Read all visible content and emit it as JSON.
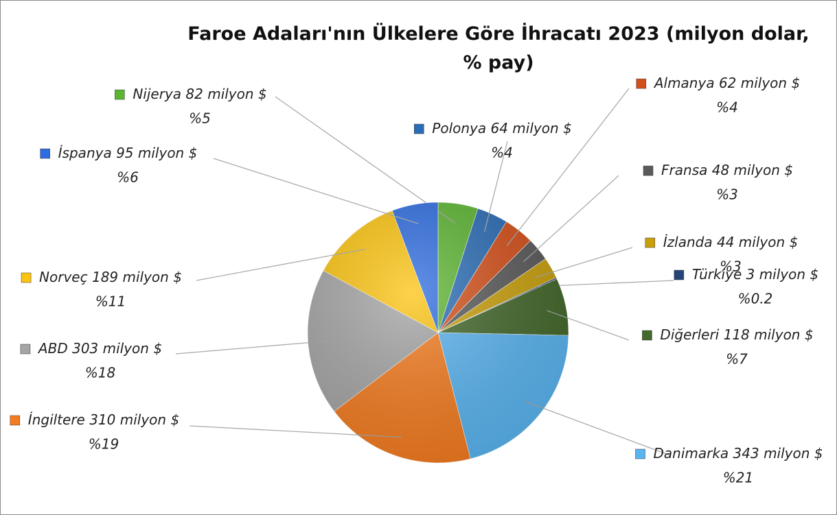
{
  "chart_data": {
    "type": "pie",
    "title": "Faroe Adaları'nın Ülkelere Göre İhracatı 2023 (milyon dolar, % pay)",
    "categories": [
      "Nijerya",
      "Polonya",
      "Almanya",
      "Fransa",
      "İzlanda",
      "Türkiye",
      "Diğerleri",
      "Danimarka",
      "İngiltere",
      "ABD",
      "Norveç",
      "İspanya"
    ],
    "values": [
      82,
      64,
      62,
      48,
      44,
      3,
      118,
      343,
      310,
      303,
      189,
      95
    ],
    "value_labels": [
      "82 milyon $",
      "64 milyon $",
      "62 milyon $",
      "48 milyon $",
      "44 milyon $",
      "3 milyon $",
      "118 milyon $",
      "343 milyon $",
      "310 milyon $",
      "303 milyon $",
      "189 milyon $",
      "95 milyon $"
    ],
    "shares": [
      5,
      4,
      4,
      3,
      3,
      0.2,
      7,
      21,
      19,
      18,
      11,
      6
    ],
    "share_labels": [
      "%5",
      "%4",
      "%4",
      "%3",
      "%3",
      "%0.2",
      "%7",
      "%21",
      "%19",
      "%18",
      "%11",
      "%6"
    ],
    "colors": [
      "#5cb531",
      "#2a6cb5",
      "#d4501a",
      "#5a5a5a",
      "#c9a00c",
      "#264478",
      "#43682b",
      "#5ab4f0",
      "#f47c20",
      "#a5a5a5",
      "#fcc410",
      "#2e6de0"
    ]
  }
}
